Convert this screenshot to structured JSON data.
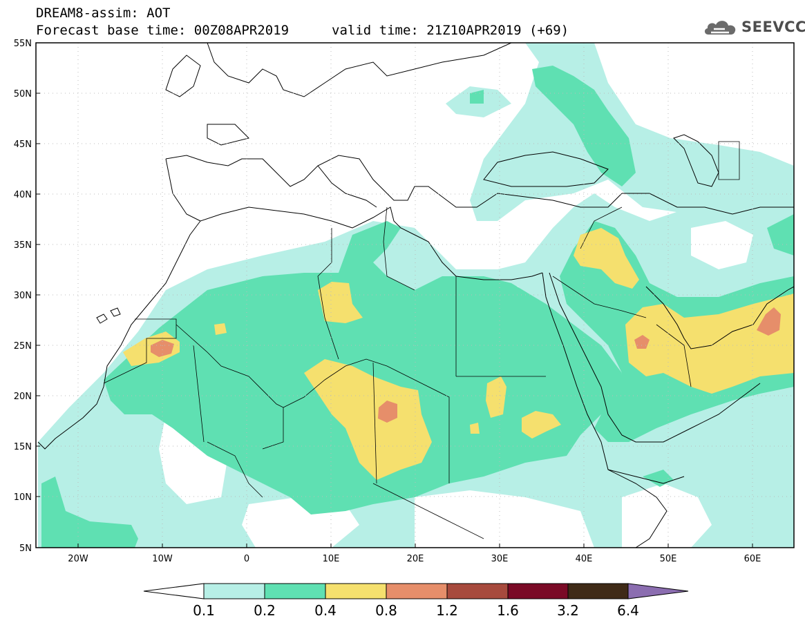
{
  "header": {
    "model_title": "DREAM8-assim: AOT",
    "base_time": "Forecast base time: 00Z08APR2019",
    "valid_time": "valid time: 21Z10APR2019 (+69)"
  },
  "logo": {
    "text": "SEEVCCC",
    "icon": "cloud-icon"
  },
  "map": {
    "lat_labels": [
      "55N",
      "50N",
      "45N",
      "40N",
      "35N",
      "30N",
      "25N",
      "20N",
      "15N",
      "10N",
      "5N"
    ],
    "lon_labels": [
      "20W",
      "10W",
      "0",
      "10E",
      "20E",
      "30E",
      "40E",
      "50E",
      "60E"
    ],
    "extent": {
      "lon_min": -25,
      "lon_max": 65,
      "lat_min": 5,
      "lat_max": 55
    },
    "regions": [
      {
        "name": "saharan-dust-0.4",
        "level": 0.4,
        "color": "#f5e06e"
      },
      {
        "name": "arabian-dust-0.4",
        "level": 0.4,
        "color": "#f5e06e"
      },
      {
        "name": "iraq-dust-0.4",
        "level": 0.4,
        "color": "#f5e06e"
      },
      {
        "name": "chad-dust-0.8",
        "level": 0.8,
        "color": "#e0836a"
      },
      {
        "name": "arabia-dust-0.8",
        "level": 0.8,
        "color": "#e0836a"
      },
      {
        "name": "western-sahara-dust-0.8",
        "level": 0.8,
        "color": "#e0836a"
      }
    ]
  },
  "legend": {
    "levels": [
      "0.1",
      "0.2",
      "0.4",
      "0.8",
      "1.2",
      "1.6",
      "3.2",
      "6.4"
    ],
    "colors": [
      "#ffffff",
      "#b7efe6",
      "#5fe0b2",
      "#f5e06e",
      "#e68e6a",
      "#a74a3d",
      "#7a0a26",
      "#3f2a17",
      "#8b6db0"
    ]
  }
}
